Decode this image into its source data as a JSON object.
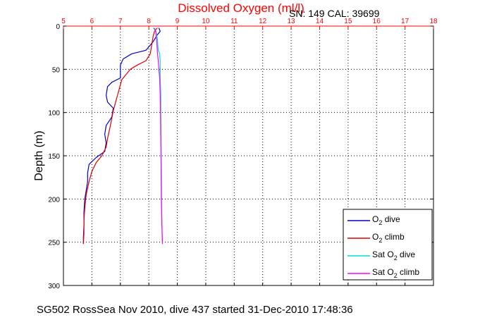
{
  "chart_data": {
    "type": "line",
    "title": "Dissolved Oxygen (ml/l)",
    "subtitle": "SN: 149  CAL: 39699",
    "ylabel": "Depth (m)",
    "footer": "SG502 RossSea Nov 2010, dive 437 started 31-Dec-2010 17:48:36",
    "xlim": [
      5,
      18
    ],
    "ylim": [
      300,
      0
    ],
    "y_reversed": true,
    "x_axis_position": "top",
    "x_ticks": [
      "5",
      "6",
      "7",
      "8",
      "9",
      "10",
      "11",
      "12",
      "13",
      "14",
      "15",
      "16",
      "17",
      "18"
    ],
    "y_ticks": [
      "0",
      "50",
      "100",
      "150",
      "200",
      "250",
      "300"
    ],
    "grid": true,
    "legend_position": "bottom-right",
    "colors": {
      "title": "#ff0000",
      "top_axis": "#ff0000"
    },
    "series": [
      {
        "name": "O2 dive",
        "legend_main": "O",
        "legend_sub": "2",
        "legend_post": " dive",
        "color": "#0000cc",
        "points": [
          [
            8.35,
            2
          ],
          [
            8.4,
            6
          ],
          [
            8.3,
            10
          ],
          [
            8.15,
            18
          ],
          [
            8.05,
            22
          ],
          [
            7.9,
            28
          ],
          [
            7.4,
            32
          ],
          [
            7.1,
            38
          ],
          [
            7.0,
            45
          ],
          [
            7.0,
            55
          ],
          [
            7.0,
            60
          ],
          [
            6.7,
            65
          ],
          [
            6.55,
            70
          ],
          [
            6.5,
            80
          ],
          [
            6.55,
            88
          ],
          [
            6.75,
            95
          ],
          [
            6.7,
            105
          ],
          [
            6.5,
            115
          ],
          [
            6.45,
            125
          ],
          [
            6.5,
            135
          ],
          [
            6.45,
            145
          ],
          [
            6.15,
            152
          ],
          [
            5.9,
            160
          ],
          [
            5.85,
            170
          ],
          [
            5.85,
            180
          ],
          [
            5.8,
            190
          ],
          [
            5.75,
            200
          ],
          [
            5.72,
            215
          ],
          [
            5.72,
            230
          ],
          [
            5.7,
            245
          ],
          [
            5.7,
            252
          ]
        ]
      },
      {
        "name": "O2 climb",
        "legend_main": "O",
        "legend_sub": "2",
        "legend_post": " climb",
        "color": "#dd0000",
        "points": [
          [
            8.3,
            2
          ],
          [
            8.2,
            6
          ],
          [
            8.15,
            12
          ],
          [
            8.1,
            22
          ],
          [
            8.05,
            32
          ],
          [
            7.9,
            40
          ],
          [
            7.6,
            45
          ],
          [
            7.35,
            50
          ],
          [
            7.05,
            62
          ],
          [
            6.9,
            80
          ],
          [
            6.75,
            98
          ],
          [
            6.65,
            115
          ],
          [
            6.55,
            130
          ],
          [
            6.5,
            140
          ],
          [
            6.35,
            150
          ],
          [
            6.15,
            158
          ],
          [
            6.0,
            168
          ],
          [
            5.9,
            180
          ],
          [
            5.8,
            195
          ],
          [
            5.75,
            210
          ],
          [
            5.72,
            225
          ],
          [
            5.72,
            240
          ],
          [
            5.7,
            252
          ]
        ]
      },
      {
        "name": "Sat O2 dive",
        "legend_main": "Sat O",
        "legend_sub": "2",
        "legend_post": " dive",
        "color": "#00dddd",
        "points": [
          [
            8.15,
            2
          ],
          [
            8.25,
            6
          ],
          [
            8.3,
            15
          ],
          [
            8.33,
            28
          ],
          [
            8.38,
            32
          ],
          [
            8.4,
            40
          ],
          [
            8.4,
            60
          ],
          [
            8.42,
            80
          ],
          [
            8.42,
            100
          ],
          [
            8.43,
            130
          ],
          [
            8.44,
            160
          ],
          [
            8.45,
            200
          ],
          [
            8.46,
            230
          ],
          [
            8.48,
            252
          ]
        ]
      },
      {
        "name": "Sat O2 climb",
        "legend_main": "Sat O",
        "legend_sub": "2",
        "legend_post": " climb",
        "color": "#ff00ff",
        "points": [
          [
            8.2,
            2
          ],
          [
            8.25,
            8
          ],
          [
            8.28,
            20
          ],
          [
            8.3,
            30
          ],
          [
            8.33,
            40
          ],
          [
            8.38,
            60
          ],
          [
            8.4,
            80
          ],
          [
            8.41,
            100
          ],
          [
            8.42,
            130
          ],
          [
            8.43,
            160
          ],
          [
            8.44,
            200
          ],
          [
            8.46,
            230
          ],
          [
            8.48,
            252
          ]
        ]
      }
    ]
  }
}
